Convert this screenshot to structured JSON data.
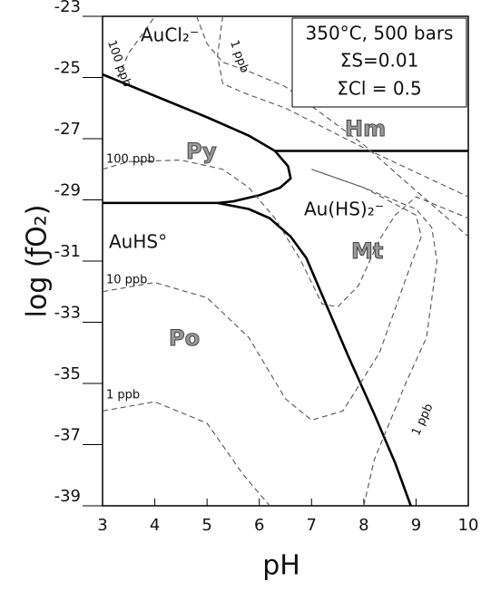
{
  "chart_data": {
    "type": "line",
    "x_label": "pH",
    "y_label": "log (ƒO₂)",
    "xlim": [
      3,
      10
    ],
    "xticks": [
      3,
      4,
      5,
      6,
      7,
      8,
      9,
      10
    ],
    "ylim": [
      -39,
      -23
    ],
    "yticks": [
      -23,
      -25,
      -27,
      -29,
      -31,
      -33,
      -35,
      -37,
      -39
    ],
    "conditions": [
      "350°C, 500 bars",
      "ΣS=0.01",
      "ΣCl = 0.5"
    ],
    "annotations": [
      "AuCl₂⁻",
      "Au(HS)₂⁻",
      "AuHS°",
      "Py",
      "Hm",
      "Mt",
      "Po",
      "100 ppb",
      "1 ppb",
      "100 ppb",
      "10 ppb",
      "1 ppb",
      "1 ppb"
    ],
    "series": [
      {
        "color": "#000000",
        "dashed": false,
        "x": [
          3,
          4,
          5,
          5.8,
          6.3,
          6.55,
          6.6,
          6.4,
          6.0,
          5.5,
          5.2
        ],
        "values": [
          -24.9,
          -25.6,
          -26.3,
          -26.9,
          -27.4,
          -27.9,
          -28.3,
          -28.6,
          -28.85,
          -29.05,
          -29.1
        ]
      },
      {
        "color": "#000000",
        "dashed": false,
        "x": [
          3,
          5.2
        ],
        "values": [
          -29.1,
          -29.1
        ]
      },
      {
        "color": "#000000",
        "dashed": false,
        "x": [
          6.3,
          10
        ],
        "values": [
          -27.4,
          -27.4
        ]
      },
      {
        "color": "#000000",
        "dashed": false,
        "x": [
          5.2,
          5.8,
          6.2,
          6.6,
          6.9,
          7.3,
          7.7,
          8.2,
          8.6,
          8.9
        ],
        "values": [
          -29.1,
          -29.3,
          -29.6,
          -30.2,
          -30.9,
          -32.5,
          -34.1,
          -36.0,
          -37.6,
          -39
        ]
      },
      {
        "color": "#555555",
        "dashed": true,
        "x": [
          3.3,
          3.5,
          3.8,
          4.0
        ],
        "values": [
          -25.0,
          -24.2,
          -23.5,
          -23
        ]
      },
      {
        "color": "#555555",
        "dashed": true,
        "x": [
          4.8,
          5.0,
          5.3,
          5.8,
          6.5,
          8.0,
          10
        ],
        "values": [
          -23,
          -23.9,
          -24.5,
          -24.8,
          -25.3,
          -27.2,
          -30.2
        ]
      },
      {
        "color": "#555555",
        "dashed": true,
        "x": [
          5.3,
          5.2,
          5.3,
          5.7,
          6.5,
          8.0,
          10
        ],
        "values": [
          -23,
          -24.3,
          -25.2,
          -25.5,
          -26.0,
          -27.3,
          -28.9
        ]
      },
      {
        "color": "#555555",
        "dashed": true,
        "x": [
          3,
          3.5,
          4.5,
          5.3,
          5.8,
          6.3,
          6.8,
          7.2,
          7.5,
          7.9,
          8.3,
          8.6,
          9.0,
          10
        ],
        "values": [
          -28.0,
          -27.75,
          -27.7,
          -28.0,
          -28.6,
          -29.6,
          -31.0,
          -32.4,
          -32.5,
          -31.8,
          -30.3,
          -29.5,
          -28.9,
          -29.6
        ]
      },
      {
        "color": "#555555",
        "dashed": true,
        "x": [
          3,
          4,
          5,
          5.8,
          6.5,
          7.0,
          7.6,
          8.3,
          8.8,
          9.1,
          9.0,
          8.0,
          7.0
        ],
        "values": [
          -32.0,
          -31.7,
          -32.2,
          -33.5,
          -35.5,
          -36.2,
          -35.9,
          -34.0,
          -31.6,
          -30.2,
          -29.5,
          -28.6,
          -28.0
        ]
      },
      {
        "color": "#555555",
        "dashed": true,
        "x": [
          3,
          4,
          5,
          5.7,
          6.2
        ],
        "values": [
          -35.9,
          -35.6,
          -36.3,
          -38.0,
          -39
        ]
      },
      {
        "color": "#555555",
        "dashed": true,
        "x": [
          8.0,
          8.2,
          8.8,
          9.2,
          9.4,
          9.3,
          9.0,
          8.0,
          7.0
        ],
        "values": [
          -39,
          -37.5,
          -35.0,
          -33.5,
          -31.0,
          -29.9,
          -29.3,
          -28.6,
          -28.0
        ]
      }
    ]
  }
}
